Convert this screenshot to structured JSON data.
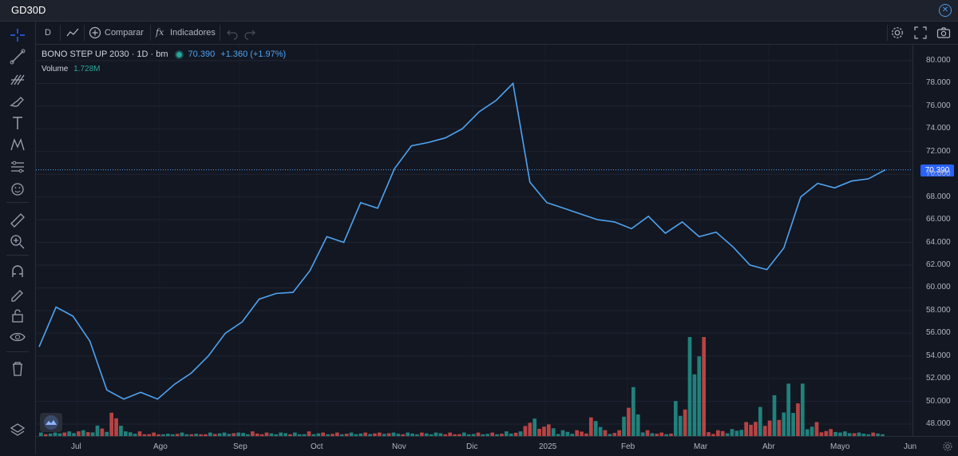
{
  "window": {
    "title": "GD30D"
  },
  "toolbar": {
    "interval": "D",
    "compare_label": "Comparar",
    "indicators_label": "Indicadores"
  },
  "legend": {
    "symbol": "BONO STEP UP 2030 · 1D · bm",
    "last_price": "70.390",
    "change": "+1.360 (+1.97%)",
    "volume_label": "Volume",
    "volume_value": "1.728M"
  },
  "price_axis": {
    "ticks": [
      "80.000",
      "78.000",
      "76.000",
      "74.000",
      "72.000",
      "70.000",
      "68.000",
      "66.000",
      "64.000",
      "62.000",
      "60.000",
      "58.000",
      "56.000",
      "54.000",
      "52.000",
      "50.000",
      "48.000"
    ],
    "current_price_tag": "70.390"
  },
  "time_axis": {
    "ticks": [
      "Jul",
      "Ago",
      "Sep",
      "Oct",
      "Nov",
      "Dic",
      "2025",
      "Feb",
      "Mar",
      "Abr",
      "Mayo",
      "Jun"
    ]
  },
  "colors": {
    "background": "#131722",
    "line": "#4fa3f0",
    "vol_up": "#26a69a",
    "vol_down": "#ef5350",
    "accent": "#2962ff"
  },
  "chart_data": {
    "type": "line",
    "ylim": [
      47,
      80.5
    ],
    "grid": true,
    "series": [
      {
        "x": [
          "Jun 18",
          "Jun 24",
          "Jul 1",
          "Jul 8",
          "Jul 16",
          "Jul 22",
          "Jul 30",
          "Ago 6",
          "Ago 14",
          "Ago 22",
          "Ago 30",
          "Sep 6",
          "Sep 13",
          "Sep 20",
          "Sep 27",
          "Oct 4",
          "Oct 11",
          "Oct 18",
          "Oct 25",
          "Nov 1",
          "Nov 8",
          "Nov 15",
          "Nov 22",
          "Nov 29",
          "Dic 6",
          "Dic 13",
          "Dic 20",
          "Dic 27",
          "Dic 31",
          "Ene 2",
          "Ene 9",
          "Ene 16",
          "Ene 23",
          "Ene 30",
          "Feb 7",
          "Feb 14",
          "Feb 21",
          "Feb 28",
          "Mar 7",
          "Mar 14",
          "Mar 21",
          "Mar 28",
          "Abr 4",
          "Abr 7",
          "Abr 11",
          "Abr 16",
          "Abr 23",
          "Abr 30",
          "May 7",
          "May 14",
          "May 19"
        ],
        "values": [
          54.8,
          58.3,
          57.5,
          55.3,
          51.0,
          50.2,
          50.8,
          50.2,
          51.5,
          52.5,
          54.0,
          56.0,
          57.0,
          59.0,
          59.5,
          59.6,
          61.5,
          64.5,
          64.0,
          67.5,
          67.0,
          70.5,
          72.5,
          72.8,
          73.2,
          74.0,
          75.5,
          76.5,
          78.0,
          69.3,
          67.5,
          67.0,
          66.5,
          66.0,
          65.8,
          65.2,
          66.3,
          64.8,
          65.8,
          64.5,
          64.9,
          63.6,
          62.0,
          61.6,
          63.5,
          68.0,
          69.2,
          68.8,
          69.4,
          69.6,
          70.39
        ]
      }
    ],
    "volume": {
      "values": [
        0.3,
        0.4,
        0.5,
        0.9,
        2.0,
        0.4,
        0.3,
        0.2,
        0.3,
        0.2,
        0.3,
        0.3,
        0.4,
        0.3,
        0.3,
        0.3,
        0.4,
        0.3,
        0.3,
        0.3,
        0.3,
        0.3,
        0.3,
        0.3,
        0.3,
        0.3,
        0.3,
        0.3,
        0.4,
        1.5,
        1.0,
        0.5,
        0.5,
        1.6,
        0.5,
        4.2,
        0.5,
        0.3,
        3.0,
        8.5,
        0.5,
        0.6,
        1.2,
        2.5,
        3.5,
        4.5,
        1.2,
        0.6,
        0.4,
        0.3,
        0.3
      ],
      "up": [
        true,
        true,
        false,
        true,
        false,
        true,
        false,
        true,
        true,
        false,
        true,
        true,
        true,
        false,
        true,
        true,
        true,
        false,
        true,
        true,
        false,
        true,
        true,
        true,
        false,
        true,
        true,
        false,
        true,
        false,
        false,
        true,
        false,
        true,
        false,
        true,
        true,
        false,
        true,
        true,
        false,
        true,
        false,
        false,
        true,
        true,
        true,
        false,
        true,
        true,
        true
      ]
    }
  }
}
